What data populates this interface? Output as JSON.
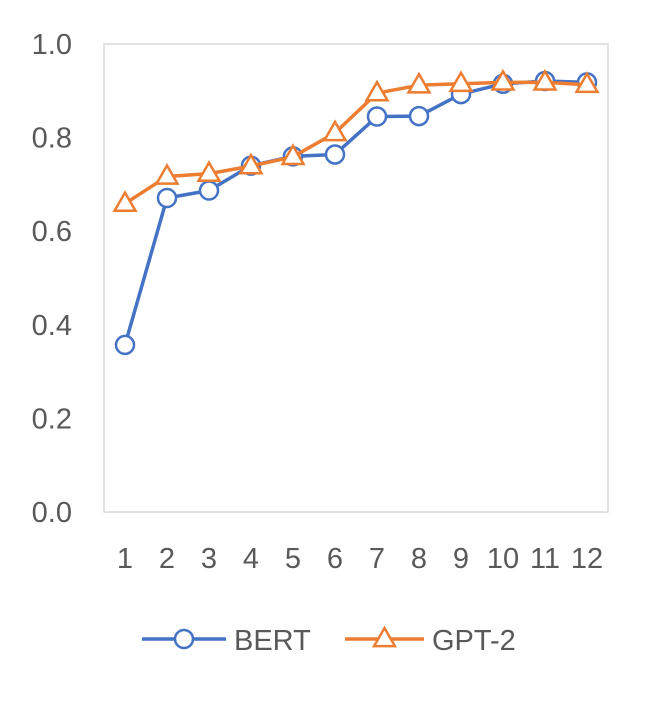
{
  "chart_data": {
    "type": "line",
    "categories": [
      "1",
      "2",
      "3",
      "4",
      "5",
      "6",
      "7",
      "8",
      "9",
      "10",
      "11",
      "12"
    ],
    "series": [
      {
        "name": "BERT",
        "values": [
          0.357,
          0.671,
          0.687,
          0.74,
          0.76,
          0.764,
          0.845,
          0.846,
          0.893,
          0.915,
          0.921,
          0.918
        ],
        "color": "#4472C4",
        "marker": "circle"
      },
      {
        "name": "GPT-2",
        "values": [
          0.659,
          0.717,
          0.723,
          0.739,
          0.759,
          0.81,
          0.895,
          0.912,
          0.915,
          0.918,
          0.918,
          0.913
        ],
        "color": "#ED7D31",
        "marker": "triangle"
      }
    ],
    "ylim": [
      0.0,
      1.0
    ],
    "yticks": [
      "0.0",
      "0.2",
      "0.4",
      "0.6",
      "0.8",
      "1.0"
    ],
    "title": "",
    "xlabel": "",
    "ylabel": "",
    "legend_position": "bottom",
    "grid": false
  }
}
